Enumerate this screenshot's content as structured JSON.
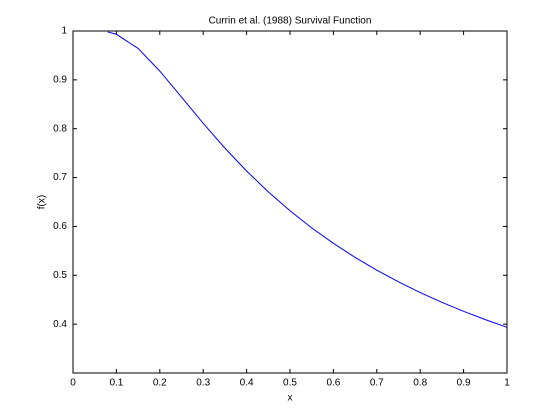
{
  "chart_data": {
    "type": "line",
    "title": "Currin et al. (1988) Survival Function",
    "x_label": "x",
    "y_label": "f(x)",
    "x": [
      0.08,
      0.1,
      0.15,
      0.2,
      0.25,
      0.3,
      0.35,
      0.4,
      0.45,
      0.5,
      0.55,
      0.6,
      0.65,
      0.7,
      0.75,
      0.8,
      0.85,
      0.9,
      0.95,
      1
    ],
    "series": [
      {
        "color": "#0000ff",
        "values": [
          0.9981,
          0.9933,
          0.9643,
          0.9179,
          0.8647,
          0.8111,
          0.7603,
          0.7135,
          0.6708,
          0.6321,
          0.5971,
          0.5654,
          0.5366,
          0.5105,
          0.4866,
          0.4647,
          0.4447,
          0.4262,
          0.4092,
          0.3935
        ]
      }
    ],
    "xlim": [
      0,
      1
    ],
    "ylim": [
      0.3,
      1
    ],
    "xticks": [
      0,
      0.1,
      0.2,
      0.3,
      0.4,
      0.5,
      0.6,
      0.7,
      0.8,
      0.9,
      1
    ],
    "yticks": [
      0.4,
      0.5,
      0.6,
      0.7,
      0.8,
      0.9,
      1
    ],
    "grid": false
  }
}
